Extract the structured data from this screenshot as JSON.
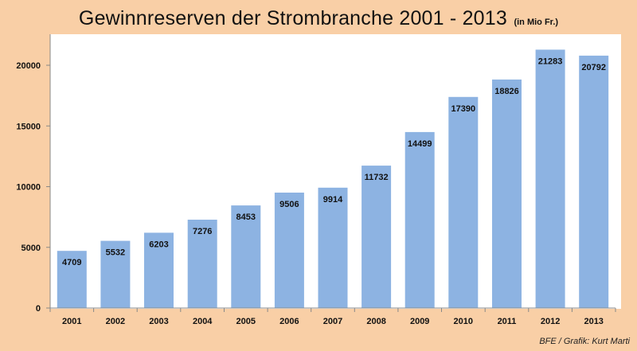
{
  "title": "Gewinnreserven der Strombranche 2001 - 2013",
  "title_unit": "(in Mio Fr.)",
  "credit": "BFE / Grafik: Kurt Marti",
  "colors": {
    "background": "#f9cfa6",
    "plot_area": "#ffffff",
    "bar": "#8db3e2",
    "axis": "#888888",
    "text": "#111111"
  },
  "chart_data": {
    "type": "bar",
    "categories": [
      "2001",
      "2002",
      "2003",
      "2004",
      "2005",
      "2006",
      "2007",
      "2008",
      "2009",
      "2010",
      "2011",
      "2012",
      "2013"
    ],
    "values": [
      4709,
      5532,
      6203,
      7276,
      8453,
      9506,
      9914,
      11732,
      14499,
      17390,
      18826,
      21283,
      20792
    ],
    "y_ticks": [
      0,
      5000,
      10000,
      15000,
      20000
    ],
    "ylim": [
      0,
      22500
    ],
    "grid": false,
    "legend": "none",
    "data_labels": true
  }
}
